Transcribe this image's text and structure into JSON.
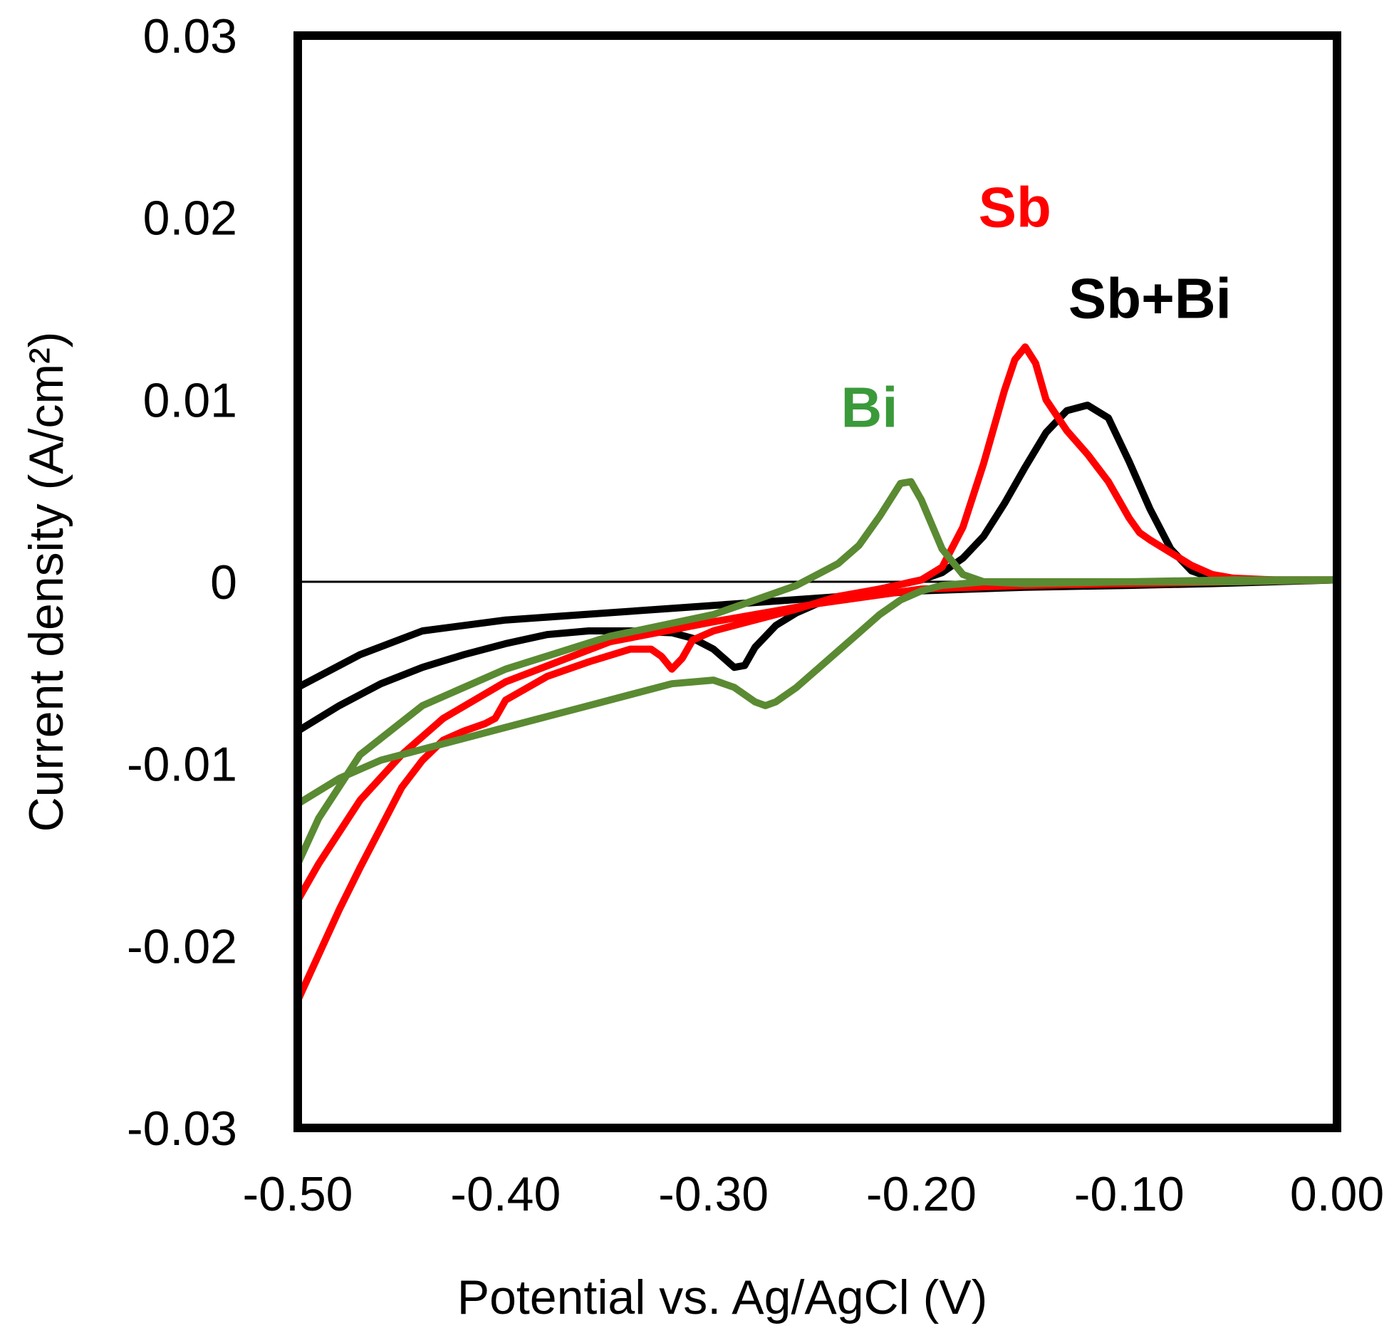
{
  "chart_data": {
    "type": "line",
    "title": "",
    "xlabel": "Potential vs. Ag/AgCl (V)",
    "ylabel": "Current density (A/cm²)",
    "xlim": [
      -0.5,
      0.0
    ],
    "ylim": [
      -0.03,
      0.03
    ],
    "x_ticks": [
      "-0.50",
      "-0.40",
      "-0.30",
      "-0.20",
      "-0.10",
      "0.00"
    ],
    "y_ticks": [
      "0.03",
      "0.02",
      "0.01",
      "0",
      "-0.01",
      "-0.02",
      "-0.03"
    ],
    "grid": false,
    "series": [
      {
        "name": "Sb+Bi",
        "color": "#000000",
        "x": [
          -0.5,
          -0.48,
          -0.46,
          -0.44,
          -0.42,
          -0.4,
          -0.38,
          -0.36,
          -0.34,
          -0.32,
          -0.31,
          -0.3,
          -0.295,
          -0.29,
          -0.285,
          -0.28,
          -0.27,
          -0.26,
          -0.25,
          -0.24,
          -0.22,
          -0.2,
          -0.19,
          -0.18,
          -0.17,
          -0.16,
          -0.15,
          -0.14,
          -0.13,
          -0.12,
          -0.11,
          -0.1,
          -0.09,
          -0.08,
          -0.07,
          -0.06,
          -0.05,
          -0.03,
          0.0,
          -0.03,
          -0.06,
          -0.1,
          -0.15,
          -0.2,
          -0.25,
          -0.3,
          -0.35,
          -0.4,
          -0.44,
          -0.47,
          -0.5
        ],
        "y": [
          -0.0082,
          -0.0068,
          -0.0056,
          -0.0047,
          -0.004,
          -0.0034,
          -0.0029,
          -0.0027,
          -0.0027,
          -0.0028,
          -0.0031,
          -0.0037,
          -0.0042,
          -0.0047,
          -0.0046,
          -0.0036,
          -0.0024,
          -0.0017,
          -0.0012,
          -0.0009,
          -0.0004,
          0.0001,
          0.0005,
          0.0013,
          0.0025,
          0.0043,
          0.0063,
          0.0082,
          0.0094,
          0.0097,
          0.009,
          0.0066,
          0.004,
          0.0018,
          0.0006,
          0.0002,
          0.0001,
          0.0001,
          0.0001,
          0.0,
          -0.0001,
          -0.0002,
          -0.0003,
          -0.0005,
          -0.0009,
          -0.0013,
          -0.0017,
          -0.0021,
          -0.0027,
          -0.004,
          -0.0058
        ]
      },
      {
        "name": "Sb",
        "color": "#ff0000",
        "x": [
          -0.5,
          -0.49,
          -0.48,
          -0.47,
          -0.46,
          -0.45,
          -0.44,
          -0.43,
          -0.42,
          -0.41,
          -0.405,
          -0.4,
          -0.38,
          -0.36,
          -0.34,
          -0.33,
          -0.325,
          -0.32,
          -0.315,
          -0.31,
          -0.3,
          -0.28,
          -0.26,
          -0.24,
          -0.22,
          -0.2,
          -0.19,
          -0.18,
          -0.17,
          -0.16,
          -0.155,
          -0.15,
          -0.145,
          -0.14,
          -0.13,
          -0.12,
          -0.11,
          -0.1,
          -0.095,
          -0.09,
          -0.08,
          -0.07,
          -0.06,
          -0.05,
          -0.03,
          0.0,
          -0.05,
          -0.1,
          -0.15,
          -0.2,
          -0.25,
          -0.3,
          -0.35,
          -0.4,
          -0.43,
          -0.45,
          -0.47,
          -0.49,
          -0.5
        ],
        "y": [
          -0.023,
          -0.0205,
          -0.018,
          -0.0157,
          -0.0135,
          -0.0113,
          -0.0098,
          -0.0087,
          -0.0082,
          -0.0078,
          -0.0075,
          -0.0065,
          -0.0052,
          -0.0044,
          -0.0037,
          -0.0037,
          -0.0041,
          -0.0048,
          -0.0042,
          -0.0032,
          -0.0027,
          -0.0021,
          -0.0015,
          -0.0008,
          -0.0004,
          0.0001,
          0.0008,
          0.003,
          0.0065,
          0.0105,
          0.0122,
          0.0129,
          0.012,
          0.01,
          0.0083,
          0.007,
          0.0055,
          0.0035,
          0.0027,
          0.0023,
          0.0016,
          0.0009,
          0.0004,
          0.0002,
          0.0001,
          0.0001,
          0.0,
          -0.0001,
          -0.0002,
          -0.0004,
          -0.0012,
          -0.0022,
          -0.0033,
          -0.0055,
          -0.0075,
          -0.0095,
          -0.012,
          -0.0155,
          -0.0175
        ]
      },
      {
        "name": "Bi",
        "color": "#5a8a32",
        "x": [
          -0.5,
          -0.49,
          -0.48,
          -0.47,
          -0.46,
          -0.44,
          -0.42,
          -0.4,
          -0.38,
          -0.36,
          -0.34,
          -0.32,
          -0.3,
          -0.29,
          -0.28,
          -0.275,
          -0.27,
          -0.26,
          -0.25,
          -0.24,
          -0.23,
          -0.22,
          -0.21,
          -0.2,
          -0.19,
          -0.18,
          -0.17,
          -0.15,
          -0.1,
          -0.05,
          0.0,
          -0.05,
          -0.1,
          -0.15,
          -0.17,
          -0.18,
          -0.19,
          -0.2,
          -0.205,
          -0.21,
          -0.215,
          -0.22,
          -0.23,
          -0.24,
          -0.25,
          -0.26,
          -0.28,
          -0.3,
          -0.35,
          -0.4,
          -0.44,
          -0.47,
          -0.49,
          -0.5
        ],
        "y": [
          -0.0122,
          -0.0115,
          -0.0108,
          -0.0103,
          -0.0098,
          -0.0092,
          -0.0086,
          -0.008,
          -0.0074,
          -0.0068,
          -0.0062,
          -0.0056,
          -0.0054,
          -0.0058,
          -0.0066,
          -0.0068,
          -0.0066,
          -0.0058,
          -0.0048,
          -0.0038,
          -0.0028,
          -0.0018,
          -0.001,
          -0.0005,
          -0.0002,
          -0.0001,
          0.0,
          0.0,
          0.0,
          0.0,
          0.0001,
          0.0001,
          0.0,
          -0.0001,
          0.0,
          0.0004,
          0.0018,
          0.0045,
          0.0055,
          0.0054,
          0.0045,
          0.0036,
          0.002,
          0.001,
          0.0004,
          -0.0002,
          -0.001,
          -0.0018,
          -0.003,
          -0.0048,
          -0.0068,
          -0.0095,
          -0.013,
          -0.0155
        ]
      }
    ],
    "annotations": [
      {
        "text": "Sb",
        "color": "#ff0000",
        "x": -0.155,
        "y": 0.0195
      },
      {
        "text": "Sb+Bi",
        "color": "#000000",
        "x": -0.09,
        "y": 0.0145
      },
      {
        "text": "Bi",
        "color": "#3a9a3a",
        "x": -0.225,
        "y": 0.0085
      }
    ]
  }
}
